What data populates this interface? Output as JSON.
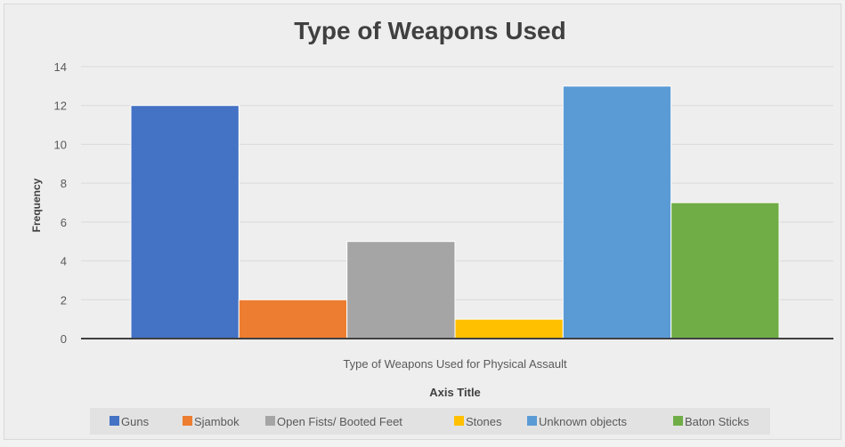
{
  "chart_data": {
    "type": "bar",
    "title": "Type of Weapons Used",
    "category_label": "Type of Weapons Used for Physical Assault",
    "xlabel": "Axis Title",
    "ylabel": "Frequency",
    "ylim": [
      0,
      14
    ],
    "yticks": [
      0,
      2,
      4,
      6,
      8,
      10,
      12,
      14
    ],
    "grid": true,
    "legend_position": "bottom",
    "series": [
      {
        "name": "Guns",
        "values": [
          12
        ],
        "color": "#4472c4"
      },
      {
        "name": "Sjambok",
        "values": [
          2
        ],
        "color": "#ed7d31"
      },
      {
        "name": "Open Fists/ Booted Feet",
        "values": [
          5
        ],
        "color": "#a5a5a5"
      },
      {
        "name": "Stones",
        "values": [
          1
        ],
        "color": "#ffc000"
      },
      {
        "name": "Unknown objects",
        "values": [
          13
        ],
        "color": "#5b9bd5"
      },
      {
        "name": "Baton Sticks",
        "values": [
          7
        ],
        "color": "#70ad47"
      }
    ]
  }
}
